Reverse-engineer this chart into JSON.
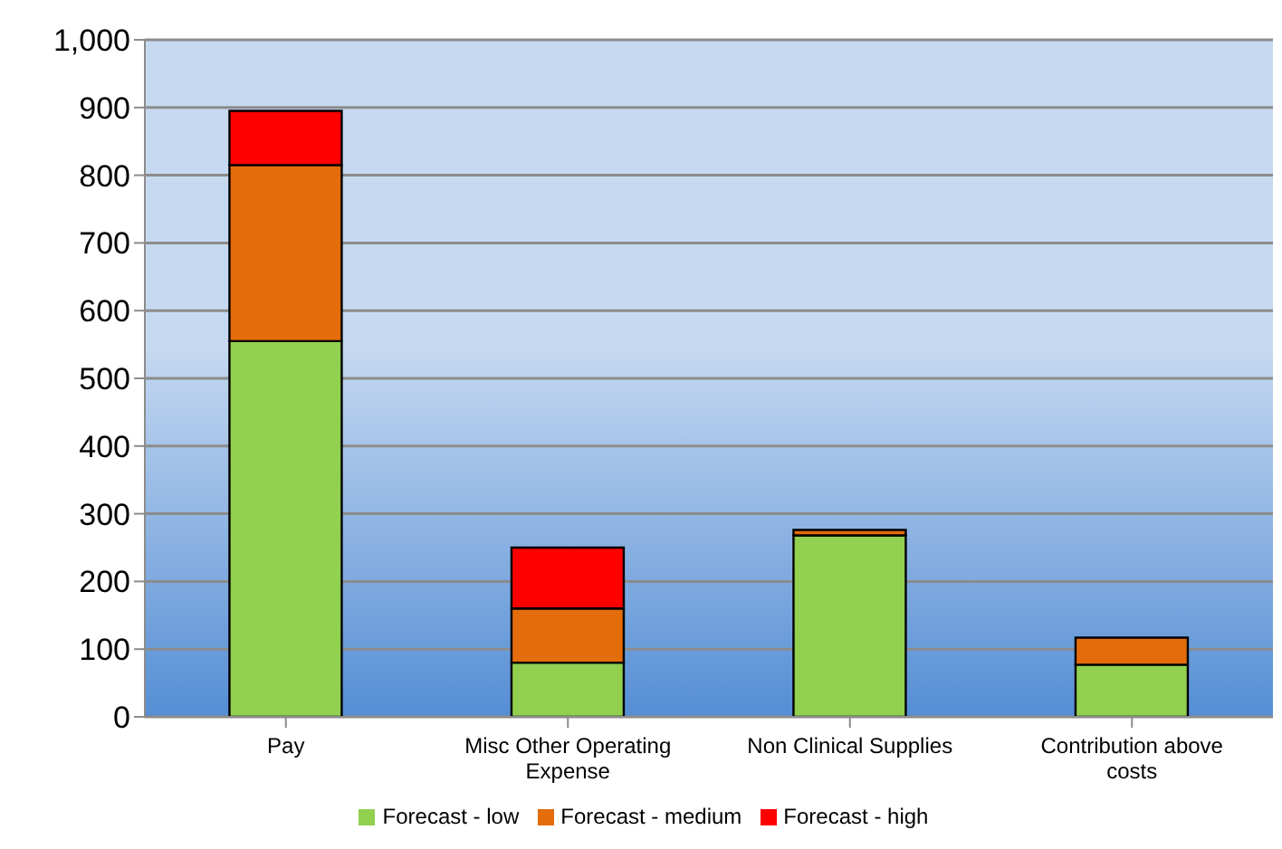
{
  "chart_data": {
    "type": "bar",
    "stacked": true,
    "categories": [
      "Pay",
      "Misc Other Operating Expense",
      "Non Clinical Supplies",
      "Contribution above costs"
    ],
    "series": [
      {
        "name": "Forecast - low",
        "color": "#92d050",
        "values": [
          555,
          80,
          268,
          77
        ]
      },
      {
        "name": "Forecast - medium",
        "color": "#e46c0a",
        "values": [
          260,
          80,
          8,
          40
        ]
      },
      {
        "name": "Forecast - high",
        "color": "#ff0000",
        "values": [
          80,
          90,
          null,
          null
        ]
      }
    ],
    "ylim": [
      0,
      1000
    ],
    "yticks": [
      0,
      100,
      200,
      300,
      400,
      500,
      600,
      700,
      800,
      900,
      {
        "value": 1000,
        "label": "1,000"
      }
    ],
    "grid": "y",
    "legend": "bottom"
  }
}
